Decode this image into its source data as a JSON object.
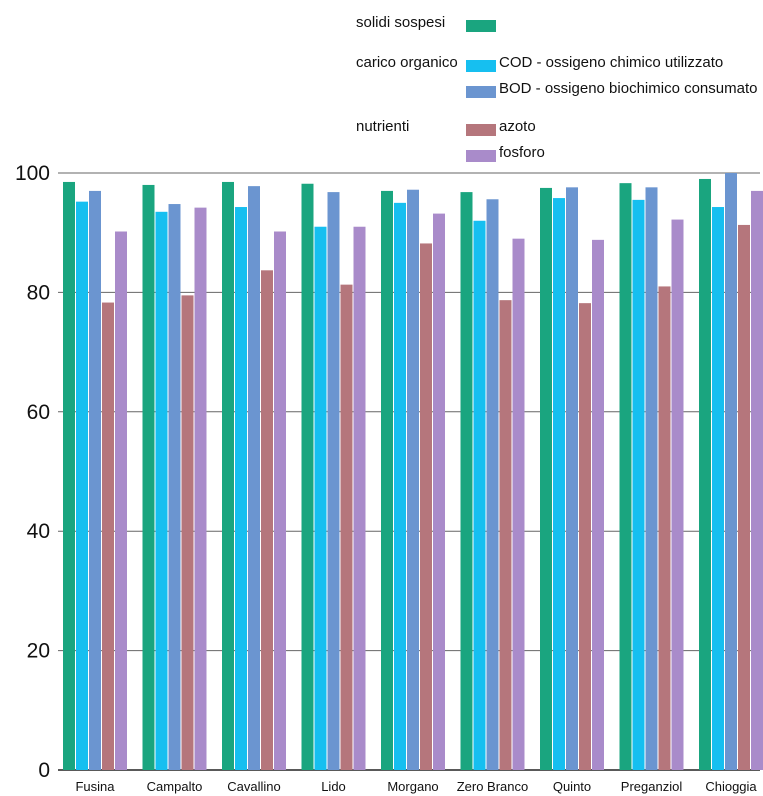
{
  "chart_data": {
    "type": "bar",
    "title": "",
    "xlabel": "",
    "ylabel": "",
    "ylim": [
      0,
      100
    ],
    "yticks": [
      0,
      20,
      40,
      60,
      80,
      100
    ],
    "grid": "horizontal",
    "legend_position": "top",
    "categories": [
      "Fusina",
      "Campalto",
      "Cavallino",
      "Lido",
      "Morgano",
      "Zero Branco",
      "Quinto",
      "Preganziol",
      "Chioggia"
    ],
    "legend_groups": [
      {
        "label": "solidi sospesi",
        "series": [
          0
        ]
      },
      {
        "label": "carico organico",
        "series": [
          1,
          2
        ]
      },
      {
        "label": "nutrienti",
        "series": [
          3,
          4
        ]
      }
    ],
    "series": [
      {
        "name": "",
        "color": "#1aa57f",
        "values": [
          98.5,
          98,
          98.5,
          98.2,
          97,
          96.8,
          97.5,
          98.3,
          99
        ]
      },
      {
        "name": "COD - ossigeno chimico utilizzato",
        "color": "#16bff0",
        "values": [
          95.2,
          93.5,
          94.3,
          91,
          95,
          92,
          95.8,
          95.5,
          94.3
        ]
      },
      {
        "name": "BOD - ossigeno biochimico consumato",
        "color": "#6b95d0",
        "values": [
          97,
          94.8,
          97.8,
          96.8,
          97.2,
          95.6,
          97.6,
          97.6,
          100
        ]
      },
      {
        "name": "azoto",
        "color": "#b5767c",
        "values": [
          78.3,
          79.5,
          83.7,
          81.3,
          88.2,
          78.7,
          78.2,
          81,
          91.3
        ]
      },
      {
        "name": "fosforo",
        "color": "#a98bca",
        "values": [
          90.2,
          94.2,
          90.2,
          91,
          93.2,
          89,
          88.8,
          92.2,
          97
        ]
      }
    ]
  }
}
